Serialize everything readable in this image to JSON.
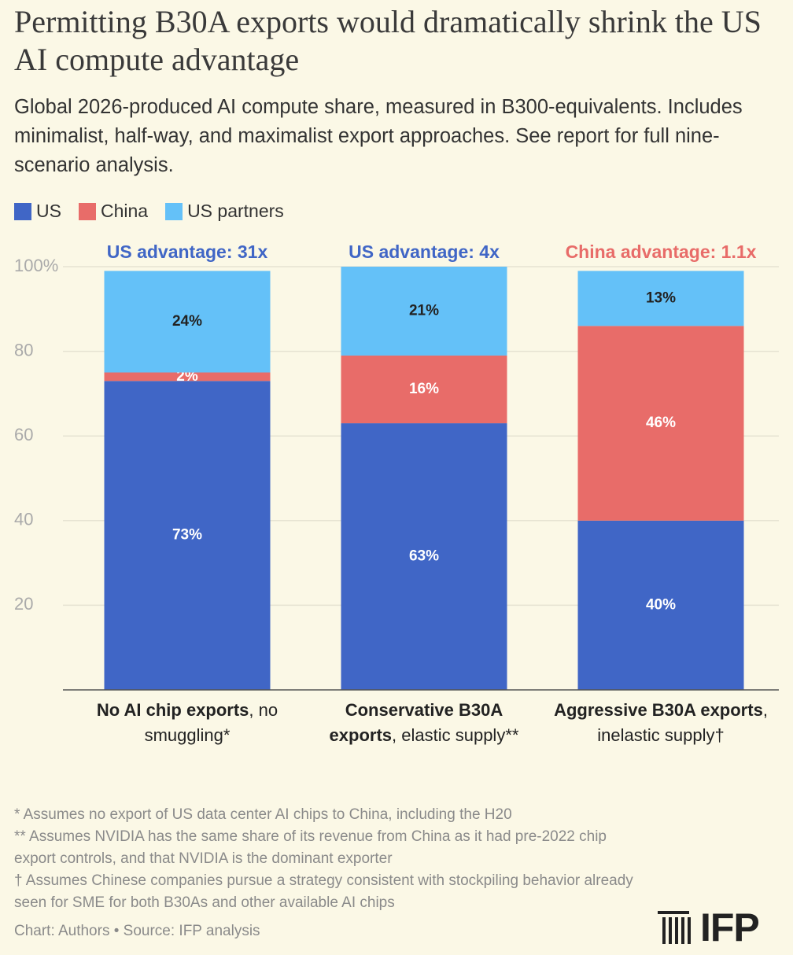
{
  "chart_data": {
    "type": "stacked_bar",
    "title": "Permitting B30A exports would dramatically shrink the US AI compute advantage",
    "subtitle": "Global 2026-produced AI compute share, measured in B300-equivalents. Includes minimalist, half-way, and maximalist export approaches. See report for full nine-scenario analysis.",
    "categories": [
      {
        "bold": "No AI chip exports",
        "rest": ", no smuggling*"
      },
      {
        "bold": "Conservative B30A exports",
        "rest": ", elastic supply**"
      },
      {
        "bold": "Aggressive B30A exports",
        "rest": ", inelastic supply†"
      }
    ],
    "series": [
      {
        "name": "US",
        "color": "#4066c6",
        "values": [
          73,
          63,
          40
        ],
        "value_labels": [
          "73%",
          "63%",
          "40%"
        ],
        "label_color": "#ffffff"
      },
      {
        "name": "China",
        "color": "#e86c69",
        "values": [
          2,
          16,
          46
        ],
        "value_labels": [
          "2%",
          "16%",
          "46%"
        ],
        "label_color": "#ffffff"
      },
      {
        "name": "US partners",
        "color": "#64c1f8",
        "values": [
          24,
          21,
          13
        ],
        "value_labels": [
          "24%",
          "21%",
          "13%"
        ],
        "label_color": "#222222"
      }
    ],
    "annotations": [
      {
        "text": "US advantage: 31x",
        "color": "#4066c6"
      },
      {
        "text": "US advantage: 4x",
        "color": "#4066c6"
      },
      {
        "text": "China advantage: 1.1x",
        "color": "#e86c69"
      }
    ],
    "ylim": [
      0,
      100
    ],
    "yticks": [
      20,
      40,
      60,
      80,
      {
        "value": 100,
        "label": "100%"
      }
    ],
    "grid": true,
    "legend": "top-left",
    "footnotes": [
      "* Assumes no export of US data center AI chips to China, including the H20",
      "** Assumes NVIDIA has the same share of its revenue from China as it had pre-2022 chip export controls, and that NVIDIA is the dominant exporter",
      "† Assumes Chinese companies pursue a strategy consistent with stockpiling behavior already seen for SME for both B30As and other available AI chips"
    ],
    "source": "Chart: Authors • Source: IFP analysis",
    "logo": "IFP"
  }
}
